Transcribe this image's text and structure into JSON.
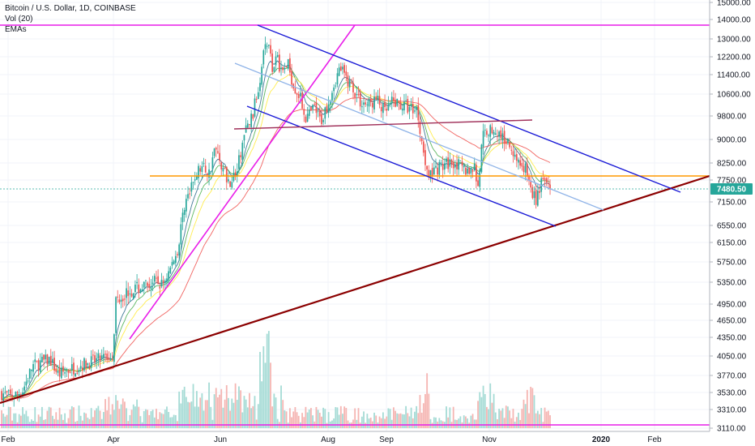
{
  "legend": {
    "title": "Bitcoin / U.S. Dollar, 1D, COINBASE",
    "volume": "Vol (20)",
    "indicator": "EMAs"
  },
  "chart_data": {
    "type": "candlestick",
    "symbol": "Bitcoin / U.S. Dollar",
    "interval": "1D",
    "exchange": "COINBASE",
    "y_axis": {
      "ticks": [
        3110,
        3310,
        3530,
        3770,
        4050,
        4350,
        4650,
        4950,
        5350,
        5750,
        6150,
        6550,
        7150,
        7750,
        8250,
        9000,
        9800,
        10600,
        11400,
        12200,
        13000,
        14000,
        15000
      ],
      "labels": [
        "3110.00",
        "3310.00",
        "3530.00",
        "3770.00",
        "4050.00",
        "4350.00",
        "4650.00",
        "4950.00",
        "5350.00",
        "5750.00",
        "6150.00",
        "6550.00",
        "7150.00",
        "7750.00",
        "8250.00",
        "9000.00",
        "9800.00",
        "10600.00",
        "11400.00",
        "12200.00",
        "13000.00",
        "14000.00",
        "15000.00"
      ],
      "scale": "log"
    },
    "x_axis": {
      "labels": [
        "Feb",
        "Apr",
        "Jun",
        "Aug",
        "Sep",
        "Nov",
        "2020",
        "Feb"
      ],
      "bold": [
        false,
        false,
        false,
        false,
        false,
        false,
        true,
        false
      ]
    },
    "last_price": {
      "label": "7480.50",
      "value": 7480.5,
      "color": "#26a69a"
    },
    "colors": {
      "up": "#26a69a",
      "down": "#ef5350",
      "grid": "#f0f3fa"
    },
    "drawings": [
      {
        "name": "horizontal-resistance-13750",
        "color": "#e91ee9",
        "kind": "horizontal",
        "price": 13750
      },
      {
        "name": "horizontal-support-3140",
        "color": "#e91ee9",
        "kind": "horizontal",
        "price": 3140
      },
      {
        "name": "orange-level-7790",
        "color": "#ff9800",
        "kind": "horizontal",
        "price": 7790
      },
      {
        "name": "last-price-line",
        "color": "#26a69a",
        "kind": "horizontal",
        "price": 7480.5
      },
      {
        "name": "long-term-trendline",
        "color": "#8b0000",
        "kind": "trend"
      },
      {
        "name": "parabolic-trendline",
        "color": "#e91ee9",
        "kind": "trend"
      },
      {
        "name": "channel-upper",
        "color": "#1a1ad6",
        "kind": "trend"
      },
      {
        "name": "channel-lower",
        "color": "#1a1ad6",
        "kind": "trend"
      },
      {
        "name": "channel-mid",
        "color": "#90b4e8",
        "kind": "trend"
      },
      {
        "name": "neckline",
        "color": "#a0305a",
        "kind": "trend"
      }
    ],
    "ema_colors": [
      "#2d6a8c",
      "#4caf50",
      "#ffeb3b",
      "#ef5350"
    ]
  }
}
